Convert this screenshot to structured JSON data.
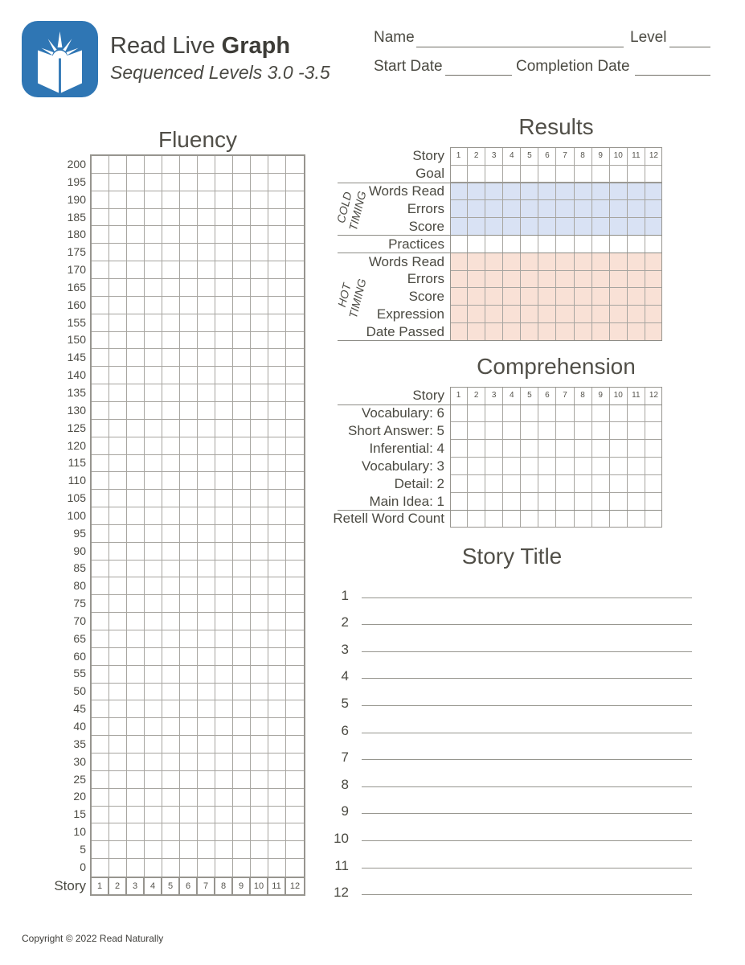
{
  "colors": {
    "logo_blue": "#2f76b4",
    "cold_fill": "#d9e2f4",
    "hot_fill": "#f9e1d6",
    "grid_line": "#a7a5a0",
    "grid_border": "#97958f",
    "text": "#4b4a42"
  },
  "brand": {
    "title_regular": "Read Live ",
    "title_bold": "Graph",
    "subtitle": "Sequenced Levels 3.0 -3.5"
  },
  "header_fields": {
    "name_label": "Name",
    "level_label": "Level",
    "start_date_label": "Start Date",
    "completion_date_label": "Completion Date"
  },
  "fluency": {
    "title": "Fluency",
    "y_labels": [
      200,
      195,
      190,
      185,
      180,
      175,
      170,
      165,
      160,
      155,
      150,
      145,
      140,
      135,
      130,
      125,
      120,
      115,
      110,
      105,
      100,
      95,
      90,
      85,
      80,
      75,
      70,
      65,
      60,
      55,
      50,
      45,
      40,
      35,
      30,
      25,
      20,
      15,
      10,
      5,
      0
    ],
    "story_label": "Story",
    "stories": [
      1,
      2,
      3,
      4,
      5,
      6,
      7,
      8,
      9,
      10,
      11,
      12
    ]
  },
  "results": {
    "title": "Results",
    "story_label": "Story",
    "stories": [
      1,
      2,
      3,
      4,
      5,
      6,
      7,
      8,
      9,
      10,
      11,
      12
    ],
    "rows": [
      {
        "label": "Goal",
        "fill": "none"
      },
      {
        "label": "Words Read",
        "fill": "cold"
      },
      {
        "label": "Errors",
        "fill": "cold"
      },
      {
        "label": "Score",
        "fill": "cold"
      },
      {
        "label": "Practices",
        "fill": "none"
      },
      {
        "label": "Words Read",
        "fill": "hot"
      },
      {
        "label": "Errors",
        "fill": "hot"
      },
      {
        "label": "Score",
        "fill": "hot"
      },
      {
        "label": "Expression",
        "fill": "hot"
      },
      {
        "label": "Date Passed",
        "fill": "hot"
      }
    ],
    "groups": [
      {
        "lines": [
          "COLD",
          "TIMING"
        ],
        "first_row": 1,
        "last_row": 3
      },
      {
        "lines": [
          "HOT",
          "TIMING"
        ],
        "first_row": 5,
        "last_row": 9
      }
    ]
  },
  "comprehension": {
    "title": "Comprehension",
    "story_label": "Story",
    "stories": [
      1,
      2,
      3,
      4,
      5,
      6,
      7,
      8,
      9,
      10,
      11,
      12
    ],
    "rows": [
      "Vocabulary: 6",
      "Short Answer: 5",
      "Inferential: 4",
      "Vocabulary: 3",
      "Detail: 2",
      "Main Idea: 1",
      "Retell Word Count"
    ]
  },
  "story_title": {
    "title": "Story Title",
    "numbers": [
      1,
      2,
      3,
      4,
      5,
      6,
      7,
      8,
      9,
      10,
      11,
      12
    ]
  },
  "footer": {
    "copyright": "Copyright © 2022 Read Naturally"
  }
}
